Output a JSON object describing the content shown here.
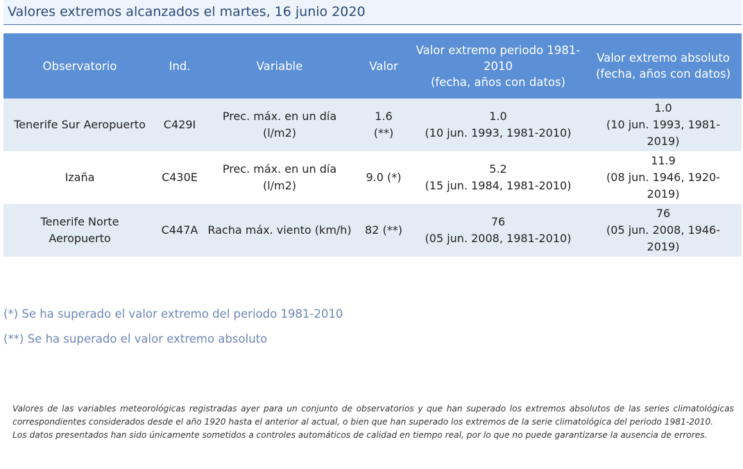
{
  "title": "Valores extremos alcanzados el martes, 16 junio 2020",
  "table": {
    "headers": [
      [
        "Observatorio"
      ],
      [
        "Ind."
      ],
      [
        "Variable"
      ],
      [
        "Valor"
      ],
      [
        "Valor extremo periodo 1981-",
        "2010",
        "(fecha, años con datos)"
      ],
      [
        "Valor extremo absoluto",
        "(fecha, años con datos)"
      ]
    ],
    "rows": [
      {
        "observatorio": [
          "Tenerife Sur Aeropuerto"
        ],
        "ind": "C429I",
        "variable": [
          "Prec. máx. en un día",
          "(l/m2)"
        ],
        "valor": [
          "1.6",
          "(**)"
        ],
        "extremo_periodo": [
          "1.0",
          "(10 jun. 1993, 1981-2010)"
        ],
        "extremo_absoluto": [
          "1.0",
          "(10 jun. 1993, 1981-",
          "2019)"
        ]
      },
      {
        "observatorio": [
          "Izaña"
        ],
        "ind": "C430E",
        "variable": [
          "Prec. máx. en un día",
          "(l/m2)"
        ],
        "valor": [
          "9.0 (*)"
        ],
        "extremo_periodo": [
          "5.2",
          "(15 jun. 1984, 1981-2010)"
        ],
        "extremo_absoluto": [
          "11.9",
          "(08 jun. 1946, 1920-",
          "2019)"
        ]
      },
      {
        "observatorio": [
          "Tenerife Norte",
          "Aeropuerto"
        ],
        "ind": "C447A",
        "variable": [
          "Racha máx. viento (km/h)"
        ],
        "valor": [
          "82 (**)"
        ],
        "extremo_periodo": [
          "76",
          "(05 jun. 2008, 1981-2010)"
        ],
        "extremo_absoluto": [
          "76",
          "(05 jun. 2008, 1946-",
          "2019)"
        ]
      }
    ]
  },
  "notes": [
    "(*) Se ha superado el valor extremo del periodo 1981-2010",
    "(**) Se ha superado el valor extremo absoluto"
  ],
  "disclaimer": [
    "Valores de las variables meteorológicas registradas ayer para un conjunto de observatorios y que han superado los extremos absolutos de las series climatológicas correspondientes considerados desde el año 1920 hasta el anterior al actual, o bien que han superado los extremos de la serie climatológica del periodo 1981-2010.",
    "Los datos presentados han sido únicamente sometidos a controles automáticos de calidad en tiempo real, por lo que no puede garantizarse la ausencia de errores."
  ]
}
